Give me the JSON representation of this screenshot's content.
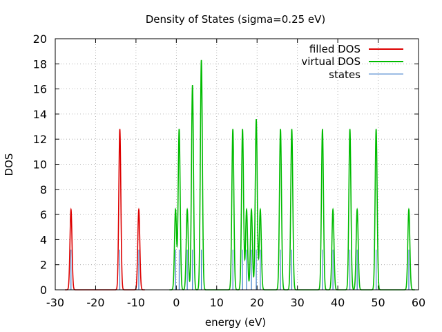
{
  "chart_data": {
    "type": "line",
    "title": "Density of States (sigma=0.25 eV)",
    "xlabel": "energy (eV)",
    "ylabel": "DOS",
    "xlim": [
      -30,
      60
    ],
    "ylim": [
      0,
      20
    ],
    "xticks": [
      -30,
      -20,
      -10,
      0,
      10,
      20,
      30,
      40,
      50,
      60
    ],
    "yticks": [
      0,
      2,
      4,
      6,
      8,
      10,
      12,
      14,
      16,
      18,
      20
    ],
    "grid": true,
    "legend_position": "top-right",
    "sigma": 0.25,
    "series": [
      {
        "name": "filled DOS",
        "color": "#dd0000",
        "peaks": [
          {
            "center": -26.1,
            "height": 6.4
          },
          {
            "center": -14.0,
            "height": 12.8
          },
          {
            "center": -9.3,
            "height": 6.4
          }
        ]
      },
      {
        "name": "virtual DOS",
        "color": "#00bb00",
        "peaks": [
          {
            "center": -0.2,
            "height": 6.4
          },
          {
            "center": 0.7,
            "height": 12.8
          },
          {
            "center": 2.7,
            "height": 6.4
          },
          {
            "center": 4.0,
            "height": 16.3
          },
          {
            "center": 6.2,
            "height": 18.3
          },
          {
            "center": 14.0,
            "height": 12.8
          },
          {
            "center": 16.4,
            "height": 12.8
          },
          {
            "center": 17.4,
            "height": 6.4
          },
          {
            "center": 18.6,
            "height": 6.4
          },
          {
            "center": 19.8,
            "height": 13.6
          },
          {
            "center": 20.8,
            "height": 6.4
          },
          {
            "center": 25.8,
            "height": 12.8
          },
          {
            "center": 28.6,
            "height": 12.8
          },
          {
            "center": 36.2,
            "height": 12.8
          },
          {
            "center": 38.8,
            "height": 6.4
          },
          {
            "center": 43.0,
            "height": 12.8
          },
          {
            "center": 44.8,
            "height": 6.4
          },
          {
            "center": 49.5,
            "height": 12.8
          },
          {
            "center": 57.6,
            "height": 6.4
          }
        ]
      },
      {
        "name": "states",
        "color": "#3a7ac9",
        "positions": [
          -26.1,
          -14.0,
          -9.3,
          -0.2,
          0.7,
          2.7,
          4.0,
          6.2,
          14.0,
          16.4,
          17.4,
          18.6,
          19.8,
          20.8,
          25.8,
          28.6,
          36.2,
          38.8,
          43.0,
          44.8,
          49.5,
          57.6
        ],
        "heights": [
          3.2,
          3.2,
          3.2,
          3.2,
          3.2,
          3.2,
          3.2,
          3.2,
          3.2,
          3.2,
          3.2,
          3.2,
          3.2,
          3.2,
          3.2,
          3.2,
          3.2,
          3.2,
          3.2,
          3.2,
          3.2,
          3.2
        ]
      }
    ]
  }
}
